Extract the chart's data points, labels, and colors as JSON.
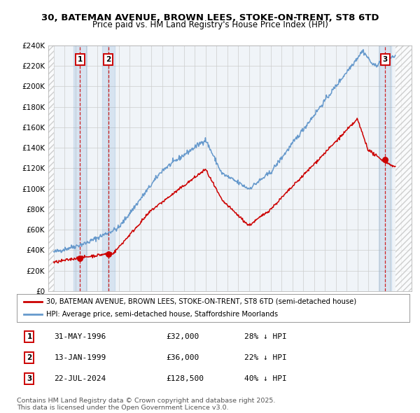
{
  "title": "30, BATEMAN AVENUE, BROWN LEES, STOKE-ON-TRENT, ST8 6TD",
  "subtitle": "Price paid vs. HM Land Registry's House Price Index (HPI)",
  "transactions": [
    {
      "num": 1,
      "date_label": "31-MAY-1996",
      "date_num": 1996.42,
      "price": 32000,
      "pct": "28% ↓ HPI"
    },
    {
      "num": 2,
      "date_label": "13-JAN-1999",
      "date_num": 1999.04,
      "price": 36000,
      "pct": "22% ↓ HPI"
    },
    {
      "num": 3,
      "date_label": "22-JUL-2024",
      "date_num": 2024.56,
      "price": 128500,
      "pct": "40% ↓ HPI"
    }
  ],
  "legend_line1": "30, BATEMAN AVENUE, BROWN LEES, STOKE-ON-TRENT, ST8 6TD (semi-detached house)",
  "legend_line2": "HPI: Average price, semi-detached house, Staffordshire Moorlands",
  "footnote": "Contains HM Land Registry data © Crown copyright and database right 2025.\nThis data is licensed under the Open Government Licence v3.0.",
  "ylim": [
    0,
    240000
  ],
  "yticks": [
    0,
    20000,
    40000,
    60000,
    80000,
    100000,
    120000,
    140000,
    160000,
    180000,
    200000,
    220000,
    240000
  ],
  "xlim_left": 1993.5,
  "xlim_right": 2027.0,
  "hatch_left_end": 1994.0,
  "hatch_right_start": 2025.5,
  "red_color": "#cc0000",
  "blue_color": "#6699cc",
  "background_color": "#f0f4f8",
  "grid_color": "#cccccc"
}
